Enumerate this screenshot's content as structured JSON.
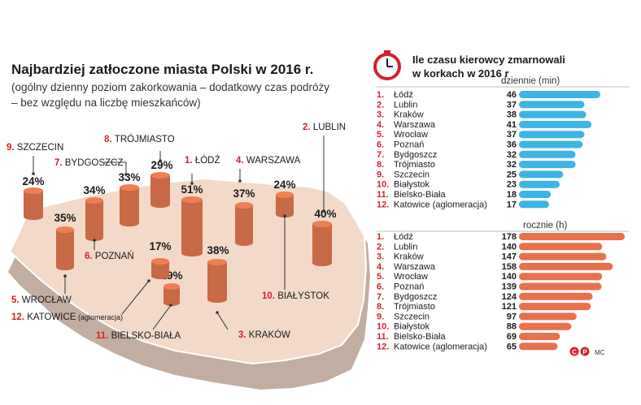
{
  "header": {
    "title": "Najbardziej zatłoczone miasta Polski w 2016 r.",
    "subtitle_line1": "(ogólny dzienny poziom zakorkowania – dodatkowy czas podróży",
    "subtitle_line2": "– bez względu na liczbę mieszkańców)"
  },
  "right_panel": {
    "title_line1": "Ile czasu kierowcy zmarnowali",
    "title_line2": "w korkach w 2016 r",
    "daily_label": "dziennie (min)",
    "yearly_label": "rocznie (h)",
    "credit": "MC"
  },
  "colors": {
    "accent_red": "#d6202a",
    "map_fill": "#f2d9c8",
    "cylinder": "#c76a45",
    "daily_bar": "#3db4e6",
    "yearly_bar": "#e8714d"
  },
  "chart_data": [
    {
      "type": "bar",
      "title": "Najbardziej zatłoczone miasta Polski w 2016 r.",
      "unit": "%",
      "categories": [
        "ŁÓDŹ",
        "LUBLIN",
        "KRAKÓW",
        "WARSZAWA",
        "WROCŁAW",
        "POZNAŃ",
        "BYDGOSZCZ",
        "TRÓJMIASTO",
        "SZCZECIN",
        "BIAŁYSTOK",
        "BIELSKO-BIAŁA",
        "KATOWICE"
      ],
      "ranks": [
        "1.",
        "2.",
        "3.",
        "4.",
        "5.",
        "6.",
        "7.",
        "8.",
        "9.",
        "10.",
        "11.",
        "12."
      ],
      "values": [
        51,
        40,
        38,
        37,
        35,
        34,
        33,
        29,
        24,
        24,
        19,
        17
      ],
      "value_labels": [
        "51%",
        "40%",
        "38%",
        "37%",
        "35%",
        "34%",
        "33%",
        "29%",
        "24%",
        "24%",
        "19%",
        "17%"
      ],
      "extra_note": "(aglomeracja)"
    },
    {
      "type": "bar",
      "title": "dziennie (min)",
      "categories": [
        "Łódź",
        "Lublin",
        "Kraków",
        "Warszawa",
        "Wrocław",
        "Poznań",
        "Bydgoszcz",
        "Trójmiasto",
        "Szczecin",
        "Białystok",
        "Bielsko-Biała",
        "Katowice (aglomeracja)"
      ],
      "ranks": [
        "1.",
        "2.",
        "3.",
        "4.",
        "5.",
        "6.",
        "7.",
        "8.",
        "9.",
        "10.",
        "11.",
        "12."
      ],
      "values": [
        46,
        37,
        38,
        41,
        37,
        36,
        32,
        32,
        25,
        23,
        18,
        17
      ]
    },
    {
      "type": "bar",
      "title": "rocznie (h)",
      "categories": [
        "Łódź",
        "Lublin",
        "Kraków",
        "Warszawa",
        "Wrocław",
        "Poznań",
        "Bydgoszcz",
        "Trójmiasto",
        "Szczecin",
        "Białystok",
        "Bielsko-Biała",
        "Katowice (aglomeracja)"
      ],
      "ranks": [
        "1.",
        "2.",
        "3.",
        "4.",
        "5.",
        "6.",
        "7.",
        "8.",
        "9.",
        "10.",
        "11.",
        "12."
      ],
      "values": [
        178,
        140,
        147,
        158,
        140,
        139,
        124,
        121,
        97,
        88,
        69,
        65
      ]
    }
  ]
}
